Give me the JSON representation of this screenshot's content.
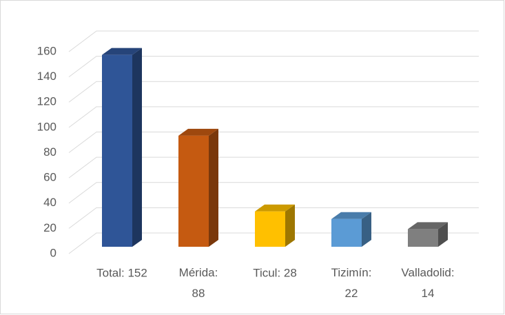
{
  "chart_data": {
    "type": "bar3d",
    "categories": [
      "Total: 152",
      "Mérida: 88",
      "Ticul: 28",
      "Tizimín: 22",
      "Valladolid: 14"
    ],
    "values": [
      152,
      88,
      28,
      22,
      14
    ],
    "colors": [
      "#2f5597",
      "#c55a11",
      "#ffc000",
      "#5b9bd5",
      "#7f7f7f"
    ],
    "ylim": [
      0,
      160
    ],
    "yticks": [
      0,
      20,
      40,
      60,
      80,
      100,
      120,
      140,
      160
    ],
    "grid": true
  }
}
